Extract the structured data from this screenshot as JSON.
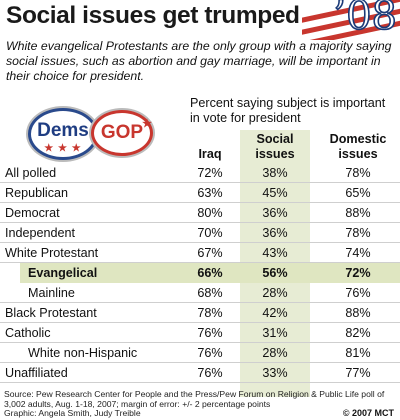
{
  "title": "Social issues get trumped",
  "year_badge": "’08",
  "subtitle": "White evangelical Protestants are the only group with a majority saying social issues, such as abortion and gay marriage, will be important in their choice for president.",
  "badges": {
    "dems": "Dems",
    "gop": "GOP"
  },
  "colors": {
    "dems_blue": "#1f3d82",
    "gop_red": "#c8362e",
    "social_column": "#e7ecd4",
    "evangelical_row": "#dfe6c1"
  },
  "chart_data": {
    "type": "table",
    "header_intro": "Percent saying subject is important in vote for president",
    "columns": [
      "Iraq",
      "Social issues",
      "Domestic issues"
    ],
    "rows": [
      {
        "label": "All polled",
        "indent": 0,
        "values": [
          "72%",
          "38%",
          "78%"
        ]
      },
      {
        "label": "Republican",
        "indent": 0,
        "values": [
          "63%",
          "45%",
          "65%"
        ]
      },
      {
        "label": "Democrat",
        "indent": 0,
        "values": [
          "80%",
          "36%",
          "88%"
        ]
      },
      {
        "label": "Independent",
        "indent": 0,
        "values": [
          "70%",
          "36%",
          "78%"
        ]
      },
      {
        "label": "White Protestant",
        "indent": 0,
        "values": [
          "67%",
          "43%",
          "74%"
        ]
      },
      {
        "label": "Evangelical",
        "indent": 1,
        "highlight": true,
        "values": [
          "66%",
          "56%",
          "72%"
        ]
      },
      {
        "label": "Mainline",
        "indent": 1,
        "values": [
          "68%",
          "28%",
          "76%"
        ]
      },
      {
        "label": "Black Protestant",
        "indent": 0,
        "values": [
          "78%",
          "42%",
          "88%"
        ]
      },
      {
        "label": "Catholic",
        "indent": 0,
        "values": [
          "76%",
          "31%",
          "82%"
        ]
      },
      {
        "label": "White non-Hispanic",
        "indent": 1,
        "values": [
          "76%",
          "28%",
          "81%"
        ]
      },
      {
        "label": "Unaffiliated",
        "indent": 0,
        "values": [
          "76%",
          "33%",
          "77%"
        ]
      }
    ]
  },
  "footer": {
    "source": "Source: Pew Research Center for People and the Press/Pew Forum on Religion & Public Life poll of 3,002 adults, Aug. 1-18, 2007; margin of error: +/- 2 percentage points",
    "graphic": "Graphic: Angela Smith, Judy Treible",
    "credit": "© 2007 MCT"
  }
}
